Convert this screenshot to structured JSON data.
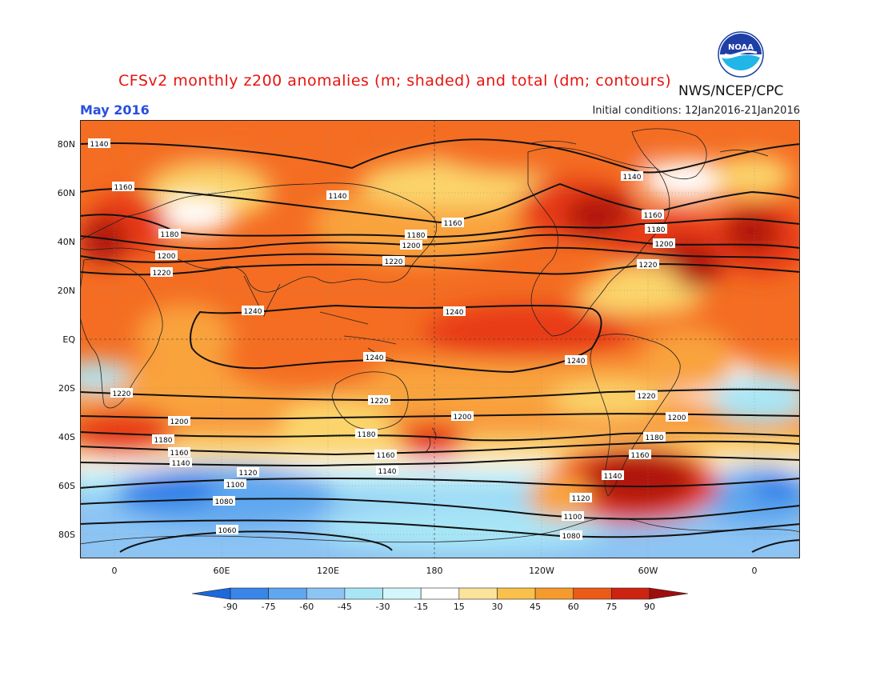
{
  "header": {
    "title": "CFSv2 monthly z200 anomalies (m; shaded) and total (dm; contours)",
    "organization": "NWS/NCEP/CPC",
    "valid_month": "May 2016",
    "initial_conditions": "Initial conditions: 12Jan2016-21Jan2016",
    "logo_text": "NOAA"
  },
  "map": {
    "lon_ticks": [
      "0",
      "60E",
      "120E",
      "180",
      "120W",
      "60W",
      "0"
    ],
    "lat_ticks": [
      "80N",
      "60N",
      "40N",
      "20N",
      "EQ",
      "20S",
      "40S",
      "60S",
      "80S"
    ],
    "contour_labels": [
      "1140",
      "1160",
      "1180",
      "1200",
      "1220",
      "1240",
      "1120",
      "1100",
      "1080",
      "1060"
    ],
    "colors": {
      "deep_red": "#b0130f",
      "red": "#e83a14",
      "orange": "#f46d22",
      "light_orange": "#f9a33c",
      "yellow": "#fbd56c",
      "white": "#ffffff",
      "light_blue": "#a8e6f6",
      "blue": "#8cc4f4",
      "mid_blue": "#5fa7ef",
      "dark_blue": "#2e7fe8"
    }
  },
  "colorbar": {
    "labels": [
      "-90",
      "-75",
      "-60",
      "-45",
      "-30",
      "-15",
      "15",
      "30",
      "45",
      "60",
      "75",
      "90"
    ],
    "colors": [
      "#1d68dd",
      "#3a85e8",
      "#5fa7ef",
      "#8cc4f4",
      "#a8e6f6",
      "#d3f5fb",
      "#ffffff",
      "#fbe39a",
      "#f9c04c",
      "#f59a2c",
      "#ec5a18",
      "#cc2410",
      "#9e0e0c"
    ]
  }
}
